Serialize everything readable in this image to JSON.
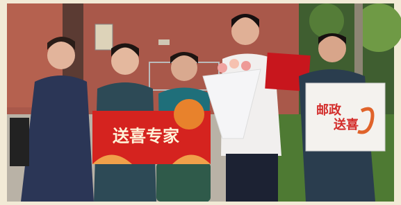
{
  "red_sign": {
    "text": "送喜专家"
  },
  "postal_bag": {
    "lines": [
      "邮政",
      "送喜"
    ]
  }
}
